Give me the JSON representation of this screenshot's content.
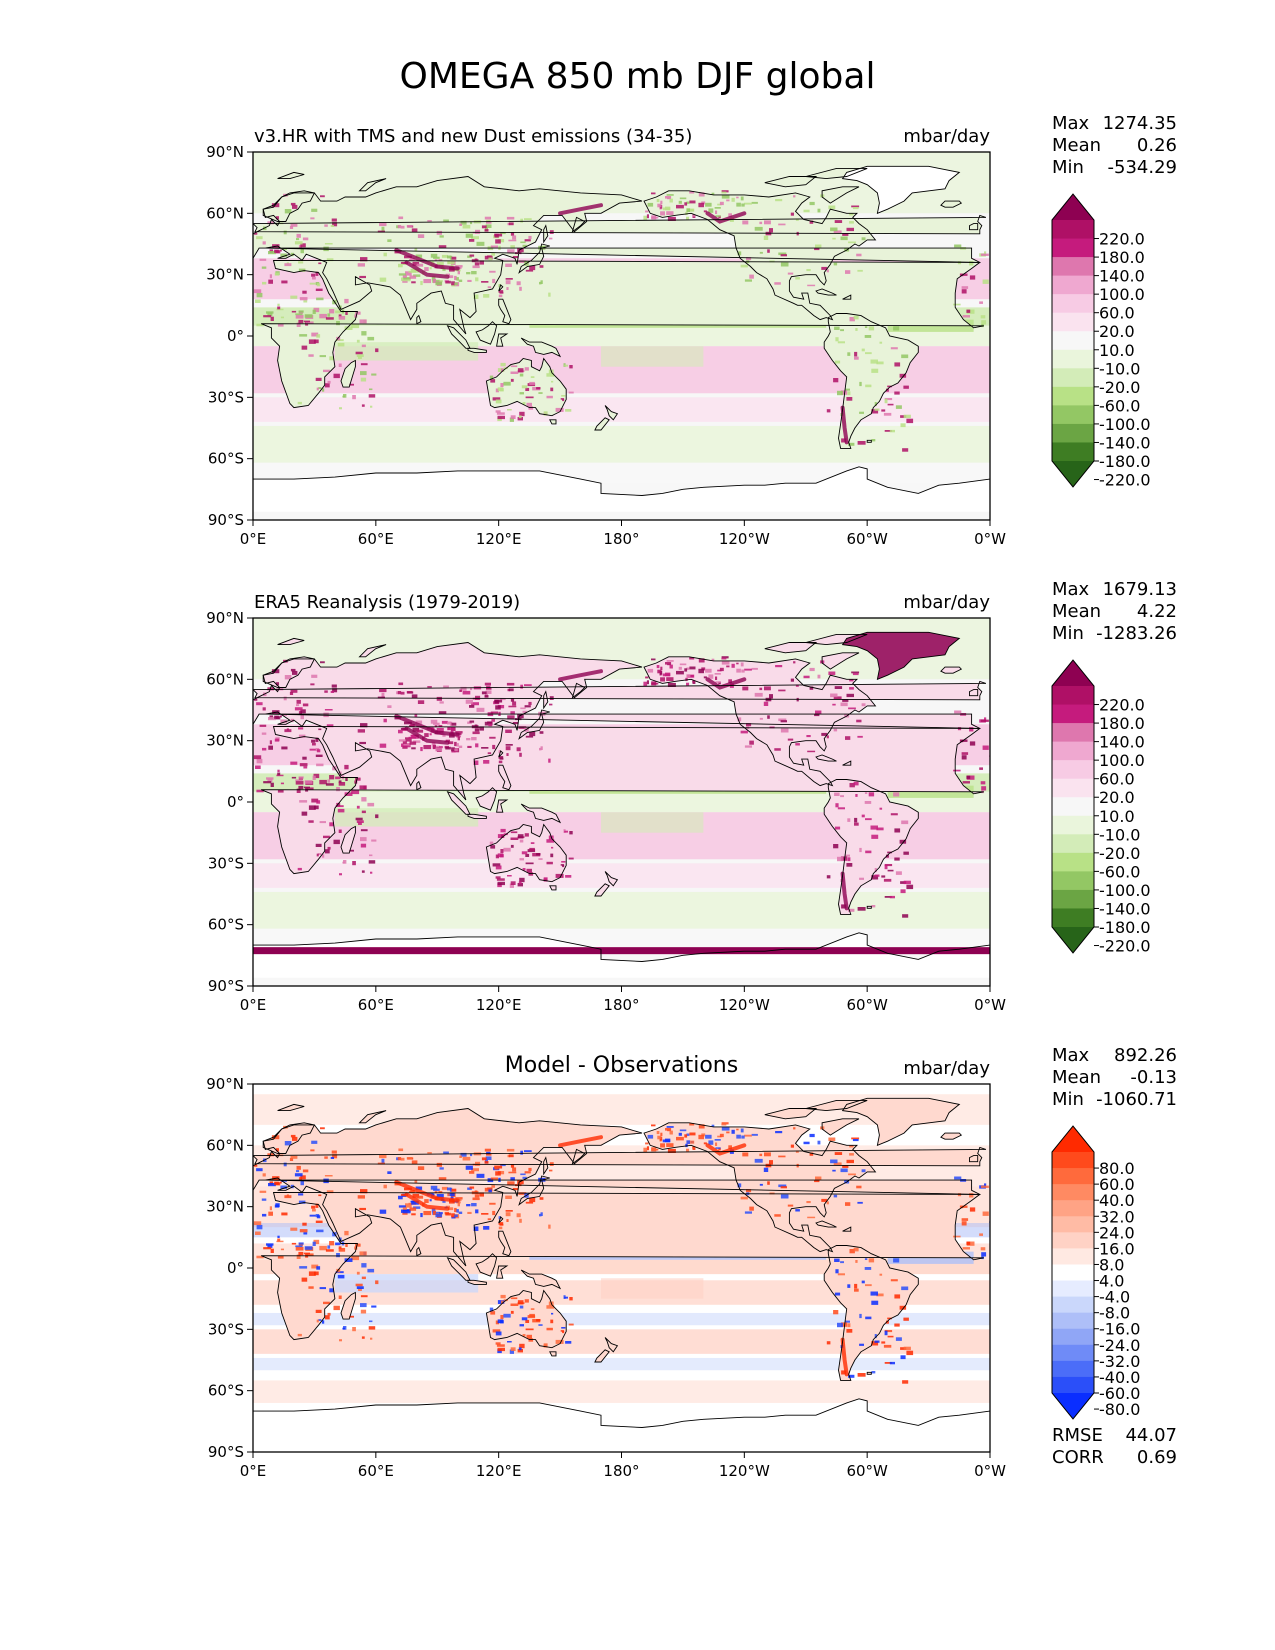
{
  "title": "OMEGA 850 mb DJF global",
  "x_ticks": [
    "0°E",
    "60°E",
    "120°E",
    "180°",
    "120°W",
    "60°W",
    "0°W"
  ],
  "y_ticks": [
    "90°N",
    "60°N",
    "30°N",
    "0°",
    "30°S",
    "60°S",
    "90°S"
  ],
  "colors": {
    "land_outline": "#000000",
    "ocean_bg": "#f7f7f7"
  },
  "panels": [
    {
      "id": "model",
      "title_left": "v3.HR with TMS and new Dust emissions (34-35)",
      "title_center": "",
      "units": "mbar/day",
      "stats": [
        {
          "label": "Max",
          "value": "1274.35"
        },
        {
          "label": "Mean",
          "value": "0.26"
        },
        {
          "label": "Min",
          "value": "-534.29"
        }
      ],
      "colorbar": {
        "labels": [
          "220.0",
          "180.0",
          "140.0",
          "100.0",
          "60.0",
          "20.0",
          "10.0",
          "-10.0",
          "-20.0",
          "-60.0",
          "-100.0",
          "-140.0",
          "-180.0",
          "-220.0"
        ],
        "colors": [
          "#8e0152",
          "#af1066",
          "#c51b7d",
          "#de77ae",
          "#efa8d0",
          "#f7cbe4",
          "#fae3ef",
          "#f7f7f7",
          "#eaf5dc",
          "#d3ecb8",
          "#b8e186",
          "#93c764",
          "#6ba544",
          "#3e7d23",
          "#276419"
        ]
      }
    },
    {
      "id": "obs",
      "title_left": "ERA5 Reanalysis (1979-2019)",
      "title_center": "",
      "units": "mbar/day",
      "stats": [
        {
          "label": "Max",
          "value": "1679.13"
        },
        {
          "label": "Mean",
          "value": "4.22"
        },
        {
          "label": "Min",
          "value": "-1283.26"
        }
      ],
      "colorbar": {
        "labels": [
          "220.0",
          "180.0",
          "140.0",
          "100.0",
          "60.0",
          "20.0",
          "10.0",
          "-10.0",
          "-20.0",
          "-60.0",
          "-100.0",
          "-140.0",
          "-180.0",
          "-220.0"
        ],
        "colors": [
          "#8e0152",
          "#af1066",
          "#c51b7d",
          "#de77ae",
          "#efa8d0",
          "#f7cbe4",
          "#fae3ef",
          "#f7f7f7",
          "#eaf5dc",
          "#d3ecb8",
          "#b8e186",
          "#93c764",
          "#6ba544",
          "#3e7d23",
          "#276419"
        ]
      }
    },
    {
      "id": "diff",
      "title_left": "",
      "title_center": "Model - Observations",
      "units": "mbar/day",
      "stats": [
        {
          "label": "Max",
          "value": "892.26"
        },
        {
          "label": "Mean",
          "value": "-0.13"
        },
        {
          "label": "Min",
          "value": "-1060.71"
        }
      ],
      "extra_stats": [
        {
          "label": "RMSE",
          "value": "44.07"
        },
        {
          "label": "CORR",
          "value": "0.69"
        }
      ],
      "colorbar": {
        "labels": [
          "80.0",
          "60.0",
          "40.0",
          "32.0",
          "24.0",
          "16.0",
          "8.0",
          "4.0",
          "-4.0",
          "-8.0",
          "-16.0",
          "-24.0",
          "-32.0",
          "-40.0",
          "-60.0",
          "-80.0"
        ],
        "colors": [
          "#ff2a00",
          "#ff4a1c",
          "#ff6a3c",
          "#ff8a62",
          "#ffa385",
          "#ffbba5",
          "#ffd2c5",
          "#ffe9e2",
          "#ffffff",
          "#e6ecff",
          "#cad7fb",
          "#aebff8",
          "#90a6f6",
          "#6f8bf7",
          "#4b6df8",
          "#2b4ff9",
          "#0a2eff"
        ]
      }
    }
  ]
}
